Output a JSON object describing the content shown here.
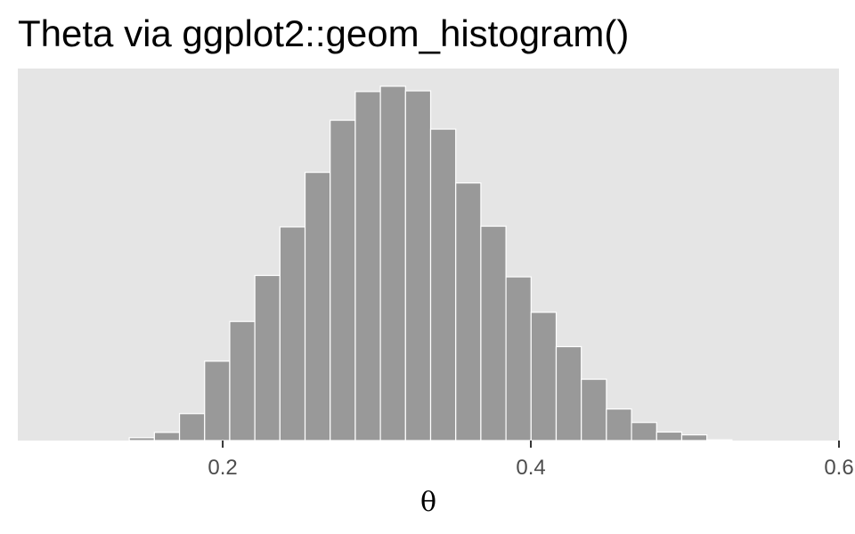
{
  "chart_data": {
    "type": "bar",
    "title": "Theta via ggplot2::geom_histogram()",
    "xlabel": "θ",
    "ylabel": "",
    "xlim": [
      0.067,
      0.6
    ],
    "ylim": [
      0,
      1.05
    ],
    "xticks": [
      {
        "value": 0.2,
        "label": "0.2"
      },
      {
        "value": 0.4,
        "label": "0.4"
      },
      {
        "value": 0.6,
        "label": "0.6"
      }
    ],
    "y_axis_visible": false,
    "grid": false,
    "bin_width": 0.0163,
    "bins": [
      {
        "center": 0.1475,
        "count": 0.008
      },
      {
        "center": 0.1638,
        "count": 0.023
      },
      {
        "center": 0.1801,
        "count": 0.076
      },
      {
        "center": 0.1964,
        "count": 0.224
      },
      {
        "center": 0.2127,
        "count": 0.336
      },
      {
        "center": 0.229,
        "count": 0.466
      },
      {
        "center": 0.2453,
        "count": 0.603
      },
      {
        "center": 0.2616,
        "count": 0.757
      },
      {
        "center": 0.2779,
        "count": 0.904
      },
      {
        "center": 0.2942,
        "count": 0.985
      },
      {
        "center": 0.3105,
        "count": 1.0
      },
      {
        "center": 0.3268,
        "count": 0.987
      },
      {
        "center": 0.3431,
        "count": 0.879
      },
      {
        "center": 0.3594,
        "count": 0.727
      },
      {
        "center": 0.3757,
        "count": 0.605
      },
      {
        "center": 0.392,
        "count": 0.462
      },
      {
        "center": 0.4083,
        "count": 0.362
      },
      {
        "center": 0.4246,
        "count": 0.265
      },
      {
        "center": 0.4409,
        "count": 0.173
      },
      {
        "center": 0.4572,
        "count": 0.089
      },
      {
        "center": 0.4735,
        "count": 0.051
      },
      {
        "center": 0.4898,
        "count": 0.024
      },
      {
        "center": 0.5061,
        "count": 0.016
      },
      {
        "center": 0.5224,
        "count": 0.002
      }
    ],
    "colors": {
      "panel_background": "#e5e5e5",
      "bar_fill": "#999999",
      "bar_outline": "#ffffff",
      "tick": "#333333",
      "tick_label": "#4d4d4d"
    }
  }
}
